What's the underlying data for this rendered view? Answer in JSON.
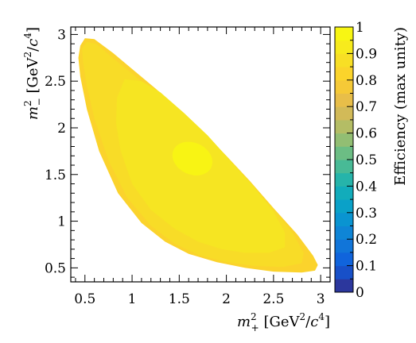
{
  "chart_data": {
    "type": "heatmap",
    "title": "",
    "xlabel": {
      "base": "m",
      "sup": "2",
      "sub": "+",
      "unit_open": " [GeV",
      "unit_sup1": "2",
      "unit_mid": "/",
      "unit_c": "c",
      "unit_sup2": "4",
      "unit_close": "]"
    },
    "ylabel": {
      "base": "m",
      "sup": "2",
      "sub": "−",
      "unit_open": " [GeV",
      "unit_sup1": "2",
      "unit_mid": "/",
      "unit_c": "c",
      "unit_sup2": "4",
      "unit_close": "]"
    },
    "xlim": [
      0.35,
      3.1
    ],
    "ylim": [
      0.35,
      3.08
    ],
    "xticks": [
      0.5,
      1,
      1.5,
      2,
      2.5,
      3
    ],
    "xtick_labels": [
      "0.5",
      "1",
      "1.5",
      "2",
      "2.5",
      "3"
    ],
    "yticks": [
      0.5,
      1,
      1.5,
      2,
      2.5,
      3
    ],
    "ytick_labels": [
      "0.5",
      "1",
      "1.5",
      "2",
      "2.5",
      "3"
    ],
    "colorbar": {
      "label": "Efficiency (max unity)",
      "range": [
        0,
        1
      ],
      "ticks": [
        0,
        0.1,
        0.2,
        0.3,
        0.4,
        0.5,
        0.6,
        0.7,
        0.8,
        0.9,
        1
      ],
      "tick_labels": [
        "0",
        "0.1",
        "0.2",
        "0.3",
        "0.4",
        "0.5",
        "0.6",
        "0.7",
        "0.8",
        "0.9",
        "1"
      ],
      "levels": 20
    },
    "boundary": [
      [
        0.45,
        2.88
      ],
      [
        0.5,
        2.96
      ],
      [
        0.6,
        2.95
      ],
      [
        0.8,
        2.8
      ],
      [
        1.0,
        2.63
      ],
      [
        1.25,
        2.42
      ],
      [
        1.5,
        2.2
      ],
      [
        1.75,
        1.96
      ],
      [
        2.0,
        1.7
      ],
      [
        2.25,
        1.43
      ],
      [
        2.5,
        1.14
      ],
      [
        2.75,
        0.86
      ],
      [
        2.92,
        0.63
      ],
      [
        2.97,
        0.53
      ],
      [
        2.94,
        0.47
      ],
      [
        2.8,
        0.45
      ],
      [
        2.5,
        0.46
      ],
      [
        2.2,
        0.5
      ],
      [
        1.9,
        0.56
      ],
      [
        1.6,
        0.65
      ],
      [
        1.35,
        0.78
      ],
      [
        1.1,
        0.98
      ],
      [
        0.85,
        1.3
      ],
      [
        0.65,
        1.75
      ],
      [
        0.52,
        2.2
      ],
      [
        0.45,
        2.55
      ],
      [
        0.43,
        2.75
      ]
    ],
    "regions": [
      {
        "value": 0.82,
        "polygon": [
          [
            0.45,
            2.88
          ],
          [
            0.5,
            2.96
          ],
          [
            0.6,
            2.95
          ],
          [
            0.8,
            2.8
          ],
          [
            1.0,
            2.63
          ],
          [
            1.25,
            2.42
          ],
          [
            1.5,
            2.2
          ],
          [
            1.75,
            1.96
          ],
          [
            2.0,
            1.7
          ],
          [
            2.25,
            1.43
          ],
          [
            2.5,
            1.14
          ],
          [
            2.75,
            0.86
          ],
          [
            2.92,
            0.63
          ],
          [
            2.97,
            0.53
          ],
          [
            2.94,
            0.47
          ],
          [
            2.8,
            0.45
          ],
          [
            2.5,
            0.46
          ],
          [
            2.2,
            0.5
          ],
          [
            1.9,
            0.56
          ],
          [
            1.6,
            0.65
          ],
          [
            1.35,
            0.78
          ],
          [
            1.1,
            0.98
          ],
          [
            0.85,
            1.3
          ],
          [
            0.65,
            1.75
          ],
          [
            0.52,
            2.2
          ],
          [
            0.45,
            2.55
          ],
          [
            0.43,
            2.75
          ]
        ]
      },
      {
        "value": 0.86,
        "polygon": [
          [
            0.47,
            2.85
          ],
          [
            0.52,
            2.92
          ],
          [
            0.62,
            2.9
          ],
          [
            0.78,
            2.76
          ],
          [
            0.95,
            2.62
          ],
          [
            1.2,
            2.42
          ],
          [
            1.5,
            2.18
          ],
          [
            1.75,
            1.94
          ],
          [
            2.0,
            1.68
          ],
          [
            2.25,
            1.41
          ],
          [
            2.5,
            1.13
          ],
          [
            2.7,
            0.88
          ],
          [
            2.82,
            0.66
          ],
          [
            2.8,
            0.55
          ],
          [
            2.6,
            0.51
          ],
          [
            2.3,
            0.52
          ],
          [
            2.0,
            0.56
          ],
          [
            1.7,
            0.64
          ],
          [
            1.45,
            0.76
          ],
          [
            1.2,
            0.95
          ],
          [
            0.95,
            1.25
          ],
          [
            0.75,
            1.65
          ],
          [
            0.6,
            2.1
          ],
          [
            0.52,
            2.45
          ],
          [
            0.48,
            2.7
          ]
        ]
      },
      {
        "value": 0.9,
        "polygon": [
          [
            0.92,
            2.52
          ],
          [
            1.1,
            2.5
          ],
          [
            1.3,
            2.38
          ],
          [
            1.55,
            2.16
          ],
          [
            1.8,
            1.92
          ],
          [
            2.05,
            1.64
          ],
          [
            2.3,
            1.36
          ],
          [
            2.5,
            1.1
          ],
          [
            2.62,
            0.88
          ],
          [
            2.62,
            0.72
          ],
          [
            2.45,
            0.66
          ],
          [
            2.2,
            0.66
          ],
          [
            1.95,
            0.7
          ],
          [
            1.7,
            0.78
          ],
          [
            1.45,
            0.92
          ],
          [
            1.2,
            1.12
          ],
          [
            1.0,
            1.4
          ],
          [
            0.88,
            1.75
          ],
          [
            0.83,
            2.05
          ],
          [
            0.84,
            2.32
          ]
        ]
      },
      {
        "value": 0.97,
        "ellipse": {
          "cx": 1.64,
          "cy": 1.67,
          "rx": 0.22,
          "ry": 0.17,
          "rotate": 25
        }
      }
    ]
  }
}
